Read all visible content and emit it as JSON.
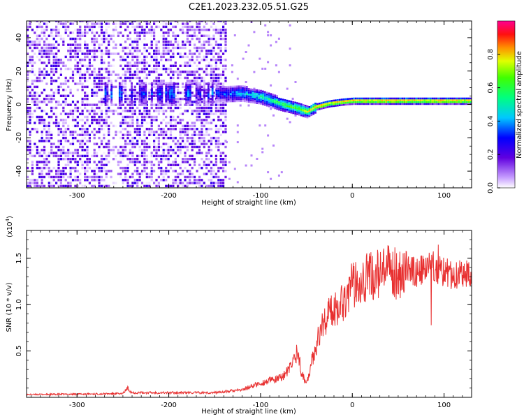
{
  "figure_title": "C2E1.2023.232.05.51.G25",
  "chart_data": [
    {
      "type": "heatmap",
      "title": "",
      "xlabel": "Height of straight line (km)",
      "ylabel": "Frequency (Hz)",
      "xlim": [
        -355,
        130
      ],
      "ylim": [
        -50,
        50
      ],
      "x_ticks": [
        -300,
        -200,
        -100,
        0,
        100
      ],
      "y_ticks": [
        -40,
        -20,
        0,
        20,
        40
      ],
      "ridge": {
        "x": [
          -150,
          -120,
          -100,
          -80,
          -60,
          -50,
          -40,
          -25,
          -10,
          0,
          20,
          60,
          100,
          130
        ],
        "freq": [
          6,
          6,
          4,
          0,
          -3,
          -5,
          -2,
          0,
          1,
          1.5,
          1.5,
          1.5,
          1.5,
          1.5
        ]
      },
      "colorbar": {
        "label": "Normalized spectral amplitude",
        "range": [
          0,
          1
        ],
        "ticks": [
          "0.0",
          "0.2",
          "0.4",
          "0.6",
          "0.8"
        ],
        "tick_values": [
          0.0,
          0.2,
          0.4,
          0.6,
          0.8
        ]
      }
    },
    {
      "type": "line",
      "title": "",
      "xlabel": "Height of straight line (km)",
      "ylabel": "SNR (10 * v/v)",
      "multiplier_label": "(x10",
      "multiplier_exp": "4",
      "multiplier_close": ")",
      "xlim": [
        -355,
        130
      ],
      "ylim": [
        0,
        18000
      ],
      "x_ticks": [
        -300,
        -200,
        -100,
        0,
        100
      ],
      "y_ticks": [
        5000,
        10000,
        15000
      ],
      "y_tick_labels": [
        "0.5",
        "1.0",
        "1.5"
      ],
      "series": [
        {
          "name": "SNR",
          "color": "#e83030",
          "x": [
            -355,
            -300,
            -250,
            -245,
            -240,
            -200,
            -150,
            -120,
            -110,
            -100,
            -90,
            -80,
            -70,
            -65,
            -60,
            -55,
            -50,
            -45,
            -40,
            -30,
            -20,
            -10,
            0,
            10,
            20,
            30,
            40,
            50,
            60,
            70,
            80,
            85,
            90,
            95,
            100,
            110,
            120,
            130
          ],
          "values": [
            300,
            350,
            400,
            1000,
            500,
            500,
            500,
            800,
            1200,
            1500,
            1800,
            2000,
            2800,
            3800,
            5000,
            2500,
            1500,
            3500,
            5500,
            8500,
            9500,
            10500,
            12000,
            13000,
            13000,
            13300,
            13500,
            13500,
            13800,
            13500,
            13800,
            14500,
            14000,
            13800,
            13500,
            13200,
            13300,
            13400
          ]
        }
      ]
    }
  ]
}
